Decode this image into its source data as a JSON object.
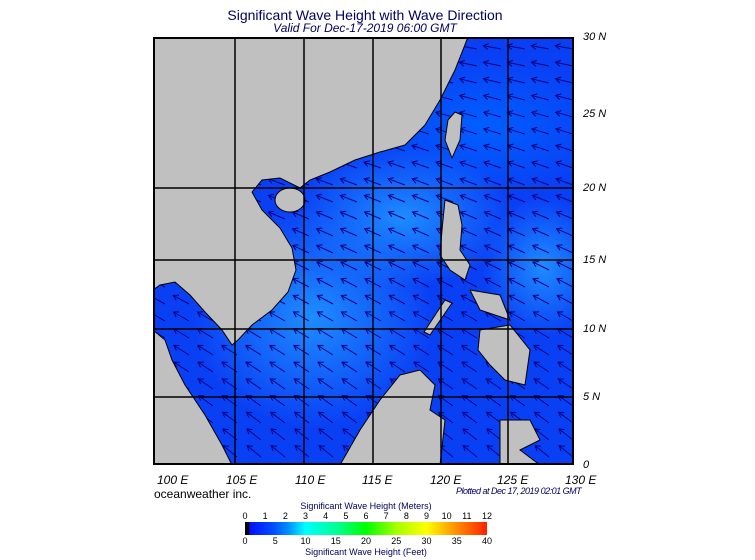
{
  "title": "Significant Wave Height with Wave Direction",
  "subtitle": "Valid For Dec-17-2019 06:00 GMT",
  "lat_labels": [
    "30 N",
    "25 N",
    "20 N",
    "15 N",
    "10 N",
    "5 N",
    "0"
  ],
  "lon_labels": [
    "100 E",
    "105 E",
    "110 E",
    "115 E",
    "120 E",
    "125 E",
    "130 E"
  ],
  "credit": "oceanweather inc.",
  "plotted": "Plotted at Dec 17, 2019 02:01 GMT",
  "colorbar": {
    "meters_title": "Significant Wave Height (Meters)",
    "meters_ticks": [
      "0",
      "1",
      "2",
      "3",
      "4",
      "5",
      "6",
      "7",
      "8",
      "9",
      "10",
      "11",
      "12"
    ],
    "feet_ticks": [
      "0",
      "5",
      "10",
      "15",
      "20",
      "25",
      "30",
      "35",
      "40"
    ],
    "feet_title": "Significant Wave Height (Feet)"
  },
  "colors": {
    "land": "#c0c0c0",
    "ocean_deep": "#0a2ef0",
    "ocean_mid": "#0a55ff",
    "ocean_light": "#1e7cff",
    "arrow": "#000080"
  },
  "map_extent": {
    "lon": [
      99,
      130
    ],
    "lat": [
      0,
      30
    ]
  }
}
